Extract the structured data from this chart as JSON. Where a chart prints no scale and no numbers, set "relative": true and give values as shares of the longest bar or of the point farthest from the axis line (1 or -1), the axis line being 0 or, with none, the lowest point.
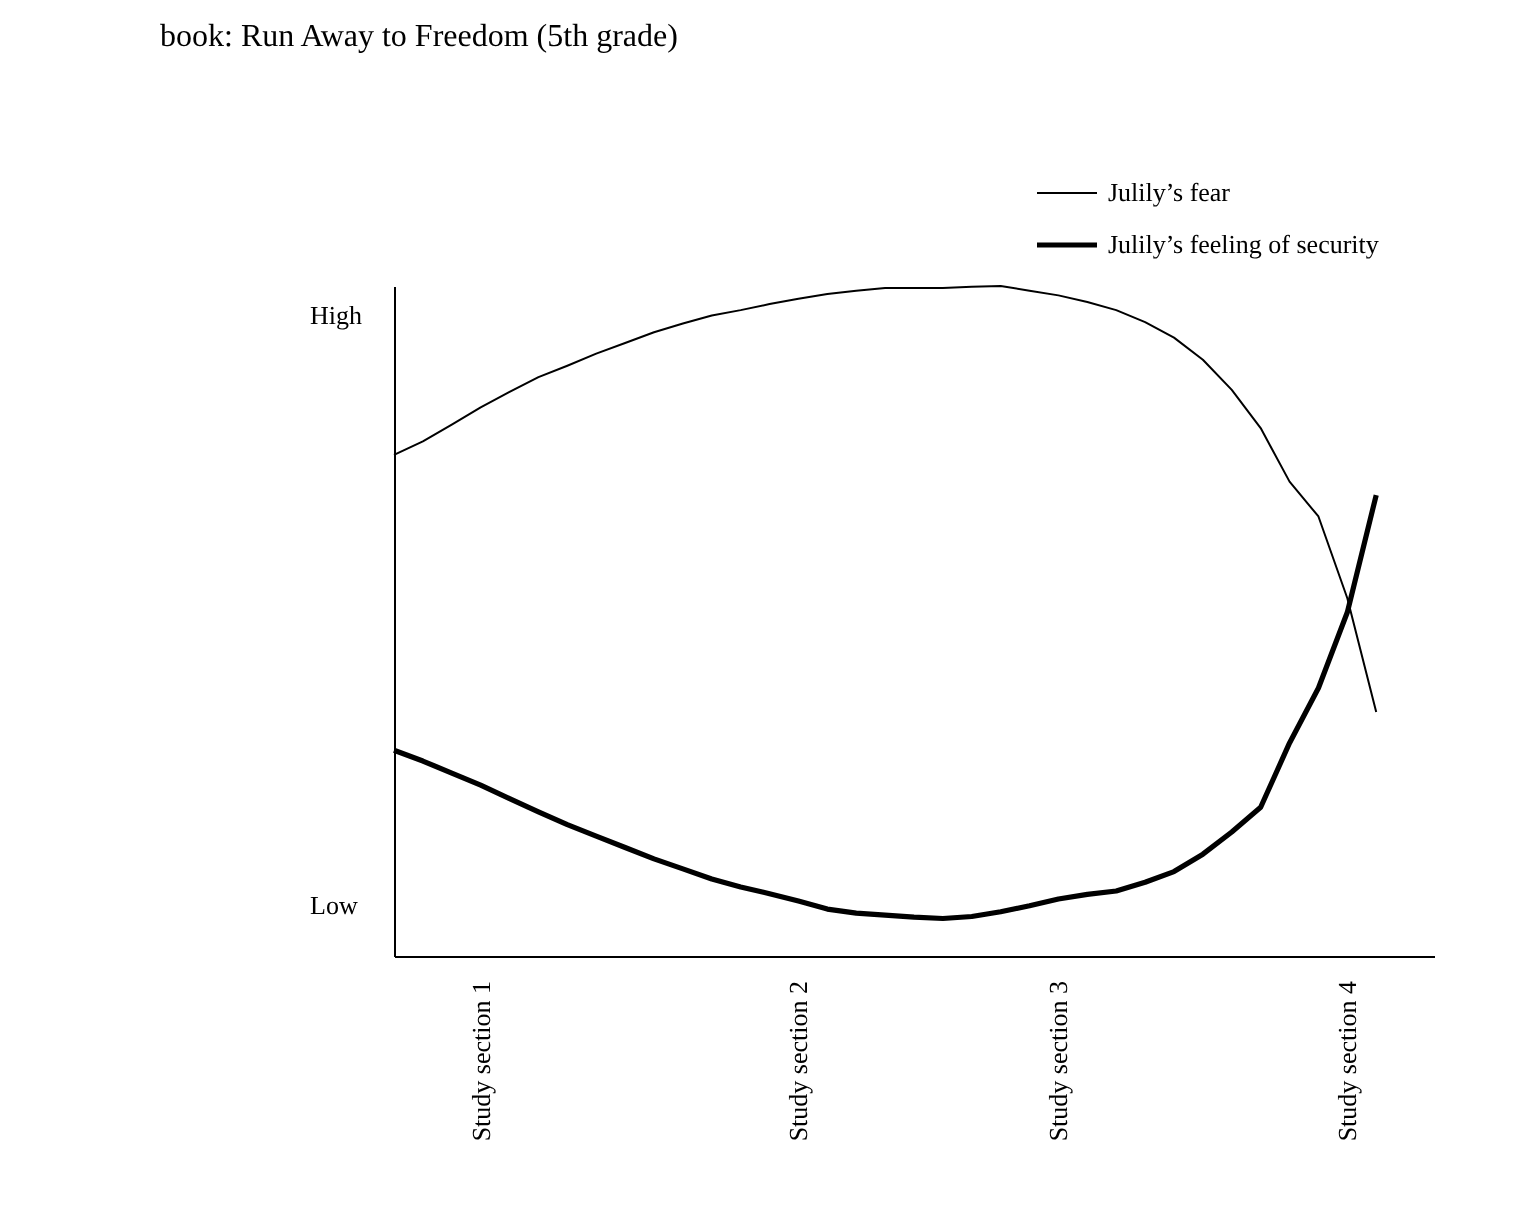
{
  "chart_data": {
    "type": "line",
    "title": "book:  Run Away to Freedom (5th grade)",
    "relative": true,
    "categories": [
      null,
      null,
      null,
      "Study section 1",
      null,
      null,
      null,
      null,
      null,
      null,
      null,
      null,
      null,
      null,
      "Study section 2",
      null,
      null,
      null,
      null,
      null,
      null,
      null,
      null,
      "Study section 3",
      null,
      null,
      null,
      null,
      null,
      null,
      null,
      null,
      null,
      "Study section 4",
      null,
      null,
      null
    ],
    "annotations": [
      "High",
      "Low"
    ],
    "legend": "top right",
    "marker": "none",
    "line_style": "solid",
    "grid": false,
    "series": [
      {
        "name": "Julily’s fear",
        "color": "#000000",
        "values": [
          0.748,
          0.768,
          0.793,
          0.819,
          0.842,
          0.864,
          0.881,
          0.899,
          0.915,
          0.931,
          0.944,
          0.956,
          0.964,
          0.973,
          0.981,
          0.988,
          0.993,
          0.997,
          0.997,
          0.997,
          0.999,
          1.0,
          0.993,
          0.986,
          0.976,
          0.964,
          0.946,
          0.923,
          0.89,
          0.845,
          0.788,
          0.708,
          0.656,
          0.534,
          0.364,
          null,
          null
        ]
      },
      {
        "name": "Julily’s feeling of security",
        "color": "#000000",
        "values": [
          0.307,
          0.291,
          0.273,
          0.255,
          0.235,
          0.215,
          0.196,
          0.179,
          0.162,
          0.145,
          0.13,
          0.115,
          0.103,
          0.093,
          0.082,
          0.07,
          0.064,
          0.061,
          0.058,
          0.056,
          0.059,
          0.066,
          0.075,
          0.085,
          0.092,
          0.097,
          0.11,
          0.126,
          0.152,
          0.185,
          0.222,
          0.318,
          0.4,
          0.513,
          0.688,
          null,
          null
        ]
      }
    ]
  }
}
